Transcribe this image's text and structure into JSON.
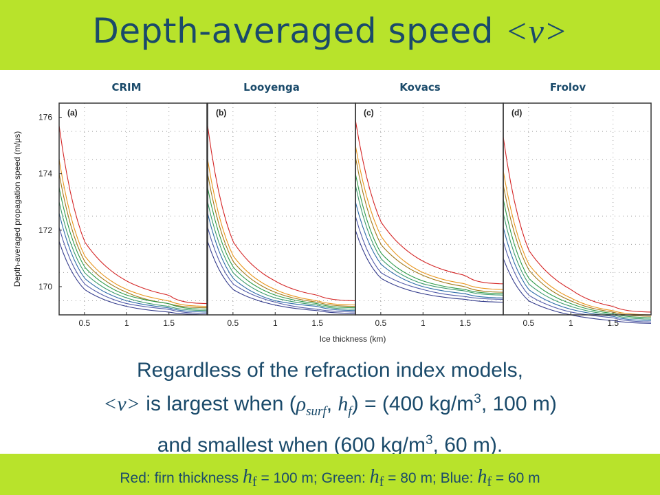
{
  "slide": {
    "title_text": "Depth-averaged speed ",
    "title_symbol": "<v>",
    "statement": {
      "line1": "Regardless of the refraction index models,",
      "line2_sym": "<v>",
      "line2_a": " is largest when (",
      "line2_rho": "ρ",
      "line2_sub_surf": "surf",
      "line2_comma": ", ",
      "line2_h": "h",
      "line2_sub_f": "f",
      "line2_b": ") = (400 kg/m",
      "line2_sup": "3",
      "line2_c": ", 100 m)",
      "line3_a": "and smallest when (600 kg/m",
      "line3_sup": "3",
      "line3_b": ", 60 m)."
    },
    "footer": {
      "p1": "Red: firn thickness ",
      "h": "h",
      "sub": "f",
      "p2": " = 100 m; Green: ",
      "p3": " = 80 m; Blue: ",
      "p4": " = 60 m"
    },
    "colors": {
      "accent_bar": "#b8e32b",
      "text": "#1a4a6a"
    }
  },
  "chart_data": {
    "type": "line",
    "ylabel": "Depth-averaged propagation speed (m/μs)",
    "xlabel": "Ice thickness (km)",
    "ylim": [
      169,
      176.5
    ],
    "yticks": [
      170,
      172,
      174,
      176
    ],
    "xlim": [
      0.2,
      1.95
    ],
    "xticks": [
      0.5,
      1,
      1.5
    ],
    "xtick_labels": [
      "0.5",
      "1",
      "1.5"
    ],
    "grid": true,
    "panels": [
      {
        "label": "(a)",
        "name": "CRIM",
        "series": [
          {
            "color": "#d42424",
            "x": [
              0.2,
              0.5,
              1,
              1.5,
              1.95
            ],
            "y": [
              175.7,
              171.6,
              170.2,
              169.7,
              169.4
            ]
          },
          {
            "color": "#e8941a",
            "x": [
              0.2,
              0.5,
              1,
              1.5,
              1.95
            ],
            "y": [
              174.5,
              171.1,
              169.9,
              169.5,
              169.3
            ]
          },
          {
            "color": "#a07818",
            "x": [
              0.2,
              0.5,
              1,
              1.5,
              1.95
            ],
            "y": [
              174.0,
              170.9,
              169.8,
              169.4,
              169.25
            ]
          },
          {
            "color": "#2e9a48",
            "x": [
              0.2,
              0.5,
              1,
              1.5,
              1.95
            ],
            "y": [
              173.5,
              170.7,
              169.7,
              169.4,
              169.2
            ]
          },
          {
            "color": "#3a9a6a",
            "x": [
              0.2,
              0.5,
              1,
              1.5,
              1.95
            ],
            "y": [
              173.0,
              170.5,
              169.6,
              169.3,
              169.15
            ]
          },
          {
            "color": "#2c6aa8",
            "x": [
              0.2,
              0.5,
              1,
              1.5,
              1.95
            ],
            "y": [
              172.6,
              170.3,
              169.5,
              169.25,
              169.1
            ]
          },
          {
            "color": "#505aa8",
            "x": [
              0.2,
              0.5,
              1,
              1.5,
              1.95
            ],
            "y": [
              172.1,
              170.1,
              169.4,
              169.2,
              169.05
            ]
          },
          {
            "color": "#343c8c",
            "x": [
              0.2,
              0.5,
              1,
              1.5,
              1.95
            ],
            "y": [
              171.6,
              169.9,
              169.3,
              169.1,
              169.0
            ]
          }
        ]
      },
      {
        "label": "(b)",
        "name": "Looyenga",
        "series": [
          {
            "color": "#d42424",
            "x": [
              0.2,
              0.5,
              1,
              1.5,
              1.95
            ],
            "y": [
              175.7,
              171.6,
              170.2,
              169.7,
              169.5
            ]
          },
          {
            "color": "#e8941a",
            "x": [
              0.2,
              0.5,
              1,
              1.5,
              1.95
            ],
            "y": [
              174.5,
              171.1,
              169.9,
              169.5,
              169.35
            ]
          },
          {
            "color": "#a07818",
            "x": [
              0.2,
              0.5,
              1,
              1.5,
              1.95
            ],
            "y": [
              174.0,
              170.9,
              169.8,
              169.45,
              169.3
            ]
          },
          {
            "color": "#2e9a48",
            "x": [
              0.2,
              0.5,
              1,
              1.5,
              1.95
            ],
            "y": [
              173.5,
              170.7,
              169.7,
              169.4,
              169.25
            ]
          },
          {
            "color": "#3a9a6a",
            "x": [
              0.2,
              0.5,
              1,
              1.5,
              1.95
            ],
            "y": [
              173.0,
              170.5,
              169.6,
              169.35,
              169.2
            ]
          },
          {
            "color": "#2c6aa8",
            "x": [
              0.2,
              0.5,
              1,
              1.5,
              1.95
            ],
            "y": [
              172.6,
              170.3,
              169.5,
              169.3,
              169.15
            ]
          },
          {
            "color": "#505aa8",
            "x": [
              0.2,
              0.5,
              1,
              1.5,
              1.95
            ],
            "y": [
              172.1,
              170.1,
              169.45,
              169.2,
              169.1
            ]
          },
          {
            "color": "#343c8c",
            "x": [
              0.2,
              0.5,
              1,
              1.5,
              1.95
            ],
            "y": [
              171.6,
              169.9,
              169.35,
              169.15,
              169.05
            ]
          }
        ]
      },
      {
        "label": "(c)",
        "name": "Kovacs",
        "series": [
          {
            "color": "#d42424",
            "x": [
              0.2,
              0.5,
              1,
              1.5,
              1.95
            ],
            "y": [
              175.9,
              172.3,
              170.9,
              170.4,
              170.1
            ]
          },
          {
            "color": "#e8941a",
            "x": [
              0.2,
              0.5,
              1,
              1.5,
              1.95
            ],
            "y": [
              175.0,
              171.8,
              170.5,
              170.1,
              169.9
            ]
          },
          {
            "color": "#a07818",
            "x": [
              0.2,
              0.5,
              1,
              1.5,
              1.95
            ],
            "y": [
              174.6,
              171.5,
              170.4,
              170.0,
              169.8
            ]
          },
          {
            "color": "#2e9a48",
            "x": [
              0.2,
              0.5,
              1,
              1.5,
              1.95
            ],
            "y": [
              174.0,
              171.2,
              170.2,
              169.9,
              169.75
            ]
          },
          {
            "color": "#3a9a6a",
            "x": [
              0.2,
              0.5,
              1,
              1.5,
              1.95
            ],
            "y": [
              173.6,
              171.0,
              170.1,
              169.85,
              169.7
            ]
          },
          {
            "color": "#2c6aa8",
            "x": [
              0.2,
              0.5,
              1,
              1.5,
              1.95
            ],
            "y": [
              173.0,
              170.8,
              170.0,
              169.75,
              169.6
            ]
          },
          {
            "color": "#505aa8",
            "x": [
              0.2,
              0.5,
              1,
              1.5,
              1.95
            ],
            "y": [
              172.5,
              170.5,
              169.9,
              169.65,
              169.55
            ]
          },
          {
            "color": "#343c8c",
            "x": [
              0.2,
              0.5,
              1,
              1.5,
              1.95
            ],
            "y": [
              172.0,
              170.3,
              169.75,
              169.55,
              169.45
            ]
          }
        ]
      },
      {
        "label": "(d)",
        "name": "Frolov",
        "series": [
          {
            "color": "#d42424",
            "x": [
              0.2,
              0.5,
              1,
              1.5,
              1.95
            ],
            "y": [
              175.3,
              171.3,
              169.9,
              169.3,
              169.1
            ]
          },
          {
            "color": "#e8941a",
            "x": [
              0.2,
              0.5,
              1,
              1.5,
              1.95
            ],
            "y": [
              174.1,
              170.8,
              169.6,
              169.15,
              169.0
            ]
          },
          {
            "color": "#a07818",
            "x": [
              0.2,
              0.5,
              1,
              1.5,
              1.95
            ],
            "y": [
              173.6,
              170.6,
              169.5,
              169.1,
              168.95
            ]
          },
          {
            "color": "#2e9a48",
            "x": [
              0.2,
              0.5,
              1,
              1.5,
              1.95
            ],
            "y": [
              173.1,
              170.3,
              169.4,
              169.05,
              168.9
            ]
          },
          {
            "color": "#3a9a6a",
            "x": [
              0.2,
              0.5,
              1,
              1.5,
              1.95
            ],
            "y": [
              172.6,
              170.1,
              169.3,
              169.0,
              168.85
            ]
          },
          {
            "color": "#2c6aa8",
            "x": [
              0.2,
              0.5,
              1,
              1.5,
              1.95
            ],
            "y": [
              172.1,
              169.9,
              169.2,
              168.95,
              168.8
            ]
          },
          {
            "color": "#505aa8",
            "x": [
              0.2,
              0.5,
              1,
              1.5,
              1.95
            ],
            "y": [
              171.6,
              169.7,
              169.1,
              168.9,
              168.75
            ]
          },
          {
            "color": "#343c8c",
            "x": [
              0.2,
              0.5,
              1,
              1.5,
              1.95
            ],
            "y": [
              171.0,
              169.5,
              169.0,
              168.8,
              168.7
            ]
          }
        ]
      }
    ]
  }
}
